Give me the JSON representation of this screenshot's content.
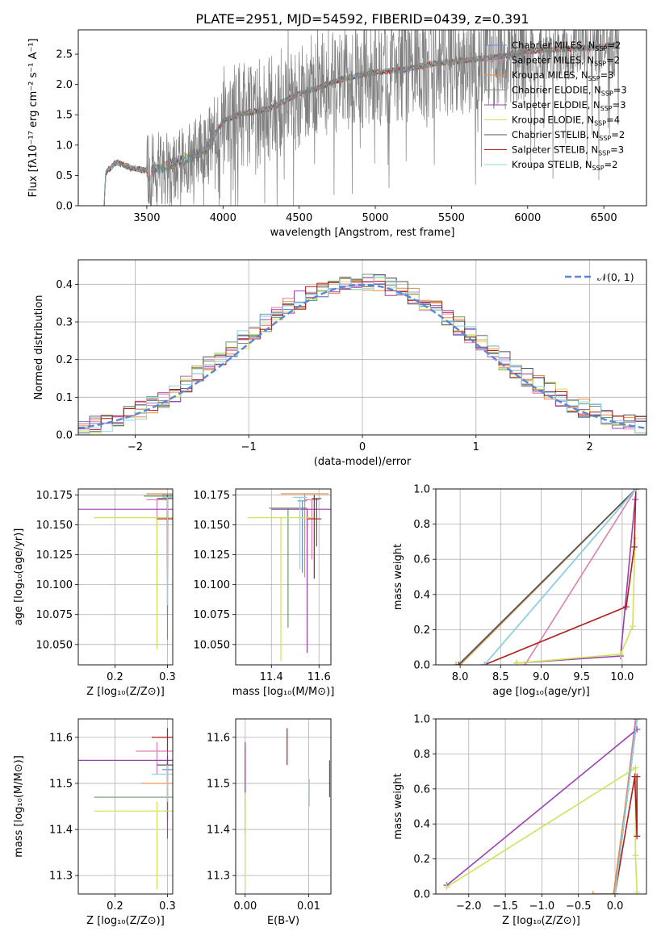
{
  "figure": {
    "title": "PLATE=2951, MJD=54592, FIBERID=0439, z=0.391"
  },
  "series": [
    {
      "name": "Chabrier MILES, N_SSP=2",
      "label_main": "Chabrier MILES, N",
      "label_sub": "SSP",
      "label_tail": "=2",
      "color": "#6e8ed6"
    },
    {
      "name": "Salpeter MILES, N_SSP=2",
      "label_main": "Salpeter MILES, N",
      "label_sub": "SSP",
      "label_tail": "=2",
      "color": "#e07fb0"
    },
    {
      "name": "Kroupa MILES, N_SSP=3",
      "label_main": "Kroupa MILES, N",
      "label_sub": "SSP",
      "label_tail": "=3",
      "color": "#ee8a3a"
    },
    {
      "name": "Chabrier ELODIE, N_SSP=3",
      "label_main": "Chabrier ELODIE, N",
      "label_sub": "SSP",
      "label_tail": "=3",
      "color": "#6b9a6b"
    },
    {
      "name": "Salpeter ELODIE, N_SSP=3",
      "label_main": "Salpeter ELODIE, N",
      "label_sub": "SSP",
      "label_tail": "=3",
      "color": "#9b3fb5"
    },
    {
      "name": "Kroupa ELODIE, N_SSP=4",
      "label_main": "Kroupa ELODIE, N",
      "label_sub": "SSP",
      "label_tail": "=4",
      "color": "#cfe35a"
    },
    {
      "name": "Chabrier STELIB, N_SSP=2",
      "label_main": "Chabrier STELIB, N",
      "label_sub": "SSP",
      "label_tail": "=2",
      "color": "#555555"
    },
    {
      "name": "Salpeter STELIB, N_SSP=3",
      "label_main": "Salpeter STELIB, N",
      "label_sub": "SSP",
      "label_tail": "=3",
      "color": "#b01e1e"
    },
    {
      "name": "Kroupa STELIB, N_SSP=2",
      "label_main": "Kroupa STELIB, N",
      "label_sub": "SSP",
      "label_tail": "=2",
      "color": "#8fd3e0"
    }
  ],
  "chart_data": [
    {
      "id": "spectrum",
      "type": "line",
      "xlabel": "wavelength [Angstrom, rest frame]",
      "ylabel": "Flux [fλ10⁻¹⁷ erg cm⁻² s⁻¹ A⁻¹]",
      "xlim": [
        3050,
        6780
      ],
      "ylim": [
        0,
        2.9
      ],
      "xticks": [
        3500,
        4000,
        4500,
        5000,
        5500,
        6000,
        6500
      ],
      "yticks": [
        0.0,
        0.5,
        1.0,
        1.5,
        2.0,
        2.5
      ],
      "grid": false,
      "legend": "upper-right",
      "data_color": "#808080",
      "continuum_knots": [
        [
          3220,
          0
        ],
        [
          3230,
          0.55
        ],
        [
          3300,
          0.72
        ],
        [
          3400,
          0.62
        ],
        [
          3500,
          0.58
        ],
        [
          3600,
          0.62
        ],
        [
          3700,
          0.72
        ],
        [
          3800,
          0.82
        ],
        [
          3900,
          0.95
        ],
        [
          3950,
          1.2
        ],
        [
          4000,
          1.4
        ],
        [
          4100,
          1.5
        ],
        [
          4200,
          1.55
        ],
        [
          4300,
          1.6
        ],
        [
          4400,
          1.72
        ],
        [
          4500,
          1.85
        ],
        [
          4600,
          1.92
        ],
        [
          4700,
          2.02
        ],
        [
          4800,
          2.1
        ],
        [
          4900,
          2.15
        ],
        [
          5000,
          2.2
        ],
        [
          5200,
          2.25
        ],
        [
          5400,
          2.35
        ],
        [
          5600,
          2.4
        ],
        [
          5800,
          2.45
        ],
        [
          6000,
          2.55
        ],
        [
          6200,
          2.58
        ],
        [
          6400,
          2.6
        ],
        [
          6600,
          2.65
        ]
      ]
    },
    {
      "id": "residuals",
      "type": "histogram",
      "xlabel": "(data-model)/error",
      "ylabel": "Normed distribution",
      "xlim": [
        -2.5,
        2.5
      ],
      "ylim": [
        0,
        0.465
      ],
      "xticks": [
        -2,
        -1,
        0,
        1,
        2
      ],
      "yticks": [
        0.0,
        0.1,
        0.2,
        0.3,
        0.4
      ],
      "bin_width": 0.1,
      "grid": true,
      "legend": "upper-right",
      "reference_curve": {
        "label": "𝒩(0, 1)",
        "mean": 0,
        "sigma": 1,
        "color": "#5b86d6"
      }
    },
    {
      "id": "age_vs_Z",
      "type": "errorbar",
      "xlabel": "Z [log₁₀(Z/Z⊙)]",
      "ylabel": "age  [log₁₀(age/yr)]",
      "xlim": [
        0.13,
        0.31
      ],
      "ylim": [
        10.033,
        10.18
      ],
      "xticks": [
        0.2,
        0.3
      ],
      "yticks": [
        10.05,
        10.075,
        10.1,
        10.125,
        10.15,
        10.175
      ],
      "grid": true,
      "points": [
        {
          "series": 0,
          "x": 0.3,
          "y": 10.175,
          "xerr": 0.01,
          "yerr_lo": 0.1,
          "yerr_hi": 0
        },
        {
          "series": 1,
          "x": 0.28,
          "y": 10.171,
          "xerr": 0.02,
          "yerr_lo": 0.08,
          "yerr_hi": 0
        },
        {
          "series": 2,
          "x": 0.3,
          "y": 10.176,
          "xerr": 0.04,
          "yerr_lo": 0.06,
          "yerr_hi": 0
        },
        {
          "series": 3,
          "x": 0.3,
          "y": 10.174,
          "xerr": 0.045,
          "yerr_lo": 0.12,
          "yerr_hi": 0
        },
        {
          "series": 4,
          "x": 0.3,
          "y": 10.163,
          "xerr": 0.17,
          "yerr_lo": 0.05,
          "yerr_hi": 0
        },
        {
          "series": 5,
          "x": 0.28,
          "y": 10.156,
          "xerr": 0.12,
          "yerr_lo": 0.11,
          "yerr_hi": 0
        },
        {
          "series": 6,
          "x": 0.3,
          "y": 10.172,
          "xerr": 0.02,
          "yerr_lo": 0.04,
          "yerr_hi": 0
        },
        {
          "series": 7,
          "x": 0.3,
          "y": 10.155,
          "xerr": 0.02,
          "yerr_lo": 0.05,
          "yerr_hi": 0.02
        },
        {
          "series": 8,
          "x": 0.3,
          "y": 10.173,
          "xerr": 0.01,
          "yerr_lo": 0.09,
          "yerr_hi": 0
        }
      ]
    },
    {
      "id": "age_vs_mass",
      "type": "errorbar",
      "xlabel": "mass [log₁₀(M/M⊙)]",
      "ylabel": "",
      "xlim": [
        11.25,
        11.65
      ],
      "ylim": [
        10.033,
        10.18
      ],
      "xticks": [
        11.4,
        11.6
      ],
      "yticks": [
        10.05,
        10.075,
        10.1,
        10.125,
        10.15,
        10.175
      ],
      "grid": true,
      "points": [
        {
          "series": 0,
          "x": 11.53,
          "y": 10.17,
          "xerr": 0.02,
          "yerr_lo": 0.06,
          "yerr_hi": 0
        },
        {
          "series": 1,
          "x": 11.57,
          "y": 10.171,
          "xerr": 0.03,
          "yerr_lo": 0.05,
          "yerr_hi": 0
        },
        {
          "series": 2,
          "x": 11.54,
          "y": 10.176,
          "xerr": 0.1,
          "yerr_lo": 0.07,
          "yerr_hi": 0
        },
        {
          "series": 3,
          "x": 11.47,
          "y": 10.164,
          "xerr": 0.08,
          "yerr_lo": 0.1,
          "yerr_hi": 0
        },
        {
          "series": 4,
          "x": 11.55,
          "y": 10.163,
          "xerr": 0.15,
          "yerr_lo": 0.12,
          "yerr_hi": 0
        },
        {
          "series": 5,
          "x": 11.44,
          "y": 10.156,
          "xerr": 0.14,
          "yerr_lo": 0.12,
          "yerr_hi": 0
        },
        {
          "series": 6,
          "x": 11.59,
          "y": 10.172,
          "xerr": 0.02,
          "yerr_lo": 0.04,
          "yerr_hi": 0
        },
        {
          "series": 7,
          "x": 11.58,
          "y": 10.155,
          "xerr": 0.03,
          "yerr_lo": 0.05,
          "yerr_hi": 0.02
        },
        {
          "series": 8,
          "x": 11.52,
          "y": 10.173,
          "xerr": 0.03,
          "yerr_lo": 0.06,
          "yerr_hi": 0
        }
      ]
    },
    {
      "id": "mass_weight_vs_age",
      "type": "line",
      "xlabel": "age  [log₁₀(age/yr)]",
      "ylabel": "mass weight",
      "xlim": [
        7.7,
        10.3
      ],
      "ylim": [
        0,
        1.0
      ],
      "xticks": [
        8.0,
        8.5,
        9.0,
        9.5,
        10.0
      ],
      "yticks": [
        0.0,
        0.2,
        0.4,
        0.6,
        0.8,
        1.0
      ],
      "grid": true,
      "lines": [
        {
          "series": 0,
          "x": [
            8.3,
            10.17
          ],
          "y": [
            0.0,
            1.0
          ]
        },
        {
          "series": 1,
          "x": [
            8.8,
            10.17
          ],
          "y": [
            0.0,
            1.0
          ]
        },
        {
          "series": 2,
          "x": [
            7.95,
            8.0,
            10.17
          ],
          "y": [
            0.0,
            0.0,
            1.0
          ]
        },
        {
          "series": 3,
          "x": [
            7.98,
            10.17
          ],
          "y": [
            0.0,
            1.0
          ]
        },
        {
          "series": 4,
          "x": [
            8.7,
            9.98,
            10.16
          ],
          "y": [
            0.01,
            0.05,
            0.94
          ]
        },
        {
          "series": 5,
          "x": [
            8.7,
            9.98,
            10.13,
            10.16
          ],
          "y": [
            0.01,
            0.06,
            0.22,
            0.72
          ]
        },
        {
          "series": 6,
          "x": [
            7.98,
            10.17
          ],
          "y": [
            0.0,
            1.0
          ]
        },
        {
          "series": 7,
          "x": [
            8.3,
            10.05,
            10.15,
            10.17
          ],
          "y": [
            0.0,
            0.33,
            0.67,
            1.0
          ]
        },
        {
          "series": 8,
          "x": [
            8.3,
            10.17
          ],
          "y": [
            0.0,
            1.0
          ]
        }
      ]
    },
    {
      "id": "mass_vs_Z",
      "type": "errorbar",
      "xlabel": "Z [log₁₀(Z/Z⊙)]",
      "ylabel": "mass [log₁₀(M/M⊙)]",
      "xlim": [
        0.13,
        0.31
      ],
      "ylim": [
        11.26,
        11.64
      ],
      "xticks": [
        0.2,
        0.3
      ],
      "yticks": [
        11.3,
        11.4,
        11.5,
        11.6
      ],
      "grid": true,
      "points": [
        {
          "series": 0,
          "x": 0.3,
          "y": 11.53,
          "xerr": 0.01,
          "yerr_lo": 0.03,
          "yerr_hi": 0.02
        },
        {
          "series": 1,
          "x": 0.28,
          "y": 11.57,
          "xerr": 0.04,
          "yerr_lo": 0.05,
          "yerr_hi": 0.02
        },
        {
          "series": 2,
          "x": 0.3,
          "y": 11.5,
          "xerr": 0.05,
          "yerr_lo": 0.08,
          "yerr_hi": 0.05
        },
        {
          "series": 3,
          "x": 0.3,
          "y": 11.47,
          "xerr": 0.14,
          "yerr_lo": 0.05,
          "yerr_hi": 0.02
        },
        {
          "series": 4,
          "x": 0.3,
          "y": 11.55,
          "xerr": 0.17,
          "yerr_lo": 0.17,
          "yerr_hi": 0.02
        },
        {
          "series": 5,
          "x": 0.28,
          "y": 11.44,
          "xerr": 0.12,
          "yerr_lo": 0.17,
          "yerr_hi": 0.02
        },
        {
          "series": 6,
          "x": 0.3,
          "y": 11.54,
          "xerr": 0.02,
          "yerr_lo": 0.03,
          "yerr_hi": 0.02
        },
        {
          "series": 7,
          "x": 0.3,
          "y": 11.6,
          "xerr": 0.03,
          "yerr_lo": 0.03,
          "yerr_hi": 0.02
        },
        {
          "series": 8,
          "x": 0.3,
          "y": 11.52,
          "xerr": 0.03,
          "yerr_lo": 0.06,
          "yerr_hi": 0.02
        }
      ]
    },
    {
      "id": "mass_vs_EBV",
      "type": "errorbar",
      "xlabel": "E(B-V)",
      "ylabel": "",
      "xlim": [
        -0.0015,
        0.0135
      ],
      "ylim": [
        11.26,
        11.64
      ],
      "xticks": [
        0.0,
        0.01
      ],
      "yticks": [
        11.3,
        11.4,
        11.5,
        11.6
      ],
      "grid": true,
      "points": [
        {
          "series": 0,
          "x": 0.0,
          "y": 11.53,
          "xerr": 0,
          "yerr_lo": 0.03,
          "yerr_hi": 0.02
        },
        {
          "series": 1,
          "x": 0.0,
          "y": 11.56,
          "xerr": 0,
          "yerr_lo": 0.04,
          "yerr_hi": 0.02
        },
        {
          "series": 2,
          "x": 0.0,
          "y": 11.5,
          "xerr": 0,
          "yerr_lo": 0.05,
          "yerr_hi": 0.04
        },
        {
          "series": 3,
          "x": 0.0,
          "y": 11.45,
          "xerr": 0,
          "yerr_lo": 0.06,
          "yerr_hi": 0.03
        },
        {
          "series": 4,
          "x": 0.0,
          "y": 11.55,
          "xerr": 0,
          "yerr_lo": 0.07,
          "yerr_hi": 0.04
        },
        {
          "series": 5,
          "x": 0.0,
          "y": 11.37,
          "xerr": 0,
          "yerr_lo": 0.1,
          "yerr_hi": 0.11
        },
        {
          "series": 6,
          "x": 0.0133,
          "y": 11.51,
          "xerr": 0,
          "yerr_lo": 0.04,
          "yerr_hi": 0.04
        },
        {
          "series": 7,
          "x": 0.0066,
          "y": 11.58,
          "xerr": 0,
          "yerr_lo": 0.04,
          "yerr_hi": 0.04
        },
        {
          "series": 8,
          "x": 0.0101,
          "y": 11.48,
          "xerr": 0,
          "yerr_lo": 0.03,
          "yerr_hi": 0.03
        }
      ]
    },
    {
      "id": "mass_weight_vs_Z",
      "type": "line",
      "xlabel": "Z [log₁₀(Z/Z⊙)]",
      "ylabel": "mass weight",
      "xlim": [
        -2.45,
        0.43
      ],
      "ylim": [
        0,
        1.0
      ],
      "xticks": [
        -2.0,
        -1.5,
        -1.0,
        -0.5,
        0.0
      ],
      "yticks": [
        0.0,
        0.2,
        0.4,
        0.6,
        0.8,
        1.0
      ],
      "grid": true,
      "lines": [
        {
          "series": 0,
          "x": [
            0.0,
            0.3
          ],
          "y": [
            0.0,
            1.0
          ]
        },
        {
          "series": 1,
          "x": [
            0.0,
            0.28
          ],
          "y": [
            0.0,
            1.0
          ]
        },
        {
          "series": 2,
          "x": [
            -0.3,
            -0.02,
            0.3
          ],
          "y": [
            0.0,
            0.0,
            1.0
          ]
        },
        {
          "series": 3,
          "x": [
            0.0,
            0.3
          ],
          "y": [
            0.0,
            1.0
          ]
        },
        {
          "series": 4,
          "x": [
            -2.3,
            0.3
          ],
          "y": [
            0.05,
            0.94
          ]
        },
        {
          "series": 5,
          "x": [
            -2.3,
            0.28,
            0.28,
            0.3
          ],
          "y": [
            0.04,
            0.72,
            0.22,
            0.01
          ]
        },
        {
          "series": 6,
          "x": [
            0.0,
            0.3
          ],
          "y": [
            0.0,
            1.0
          ]
        },
        {
          "series": 7,
          "x": [
            0.0,
            0.27,
            0.3,
            0.3
          ],
          "y": [
            0.0,
            0.67,
            0.33,
            0.67
          ]
        },
        {
          "series": 8,
          "x": [
            0.0,
            0.3
          ],
          "y": [
            0.0,
            1.0
          ]
        }
      ]
    }
  ]
}
